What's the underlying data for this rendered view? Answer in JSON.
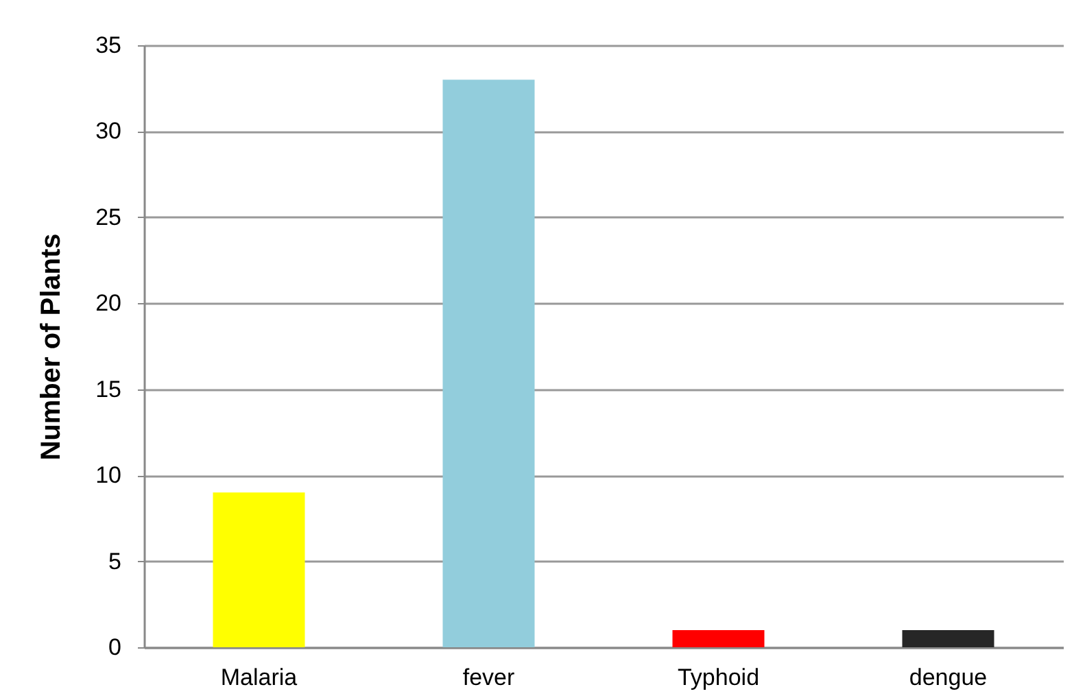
{
  "chart_data": {
    "type": "bar",
    "ylabel": "Number of Plants",
    "categories": [
      "Malaria",
      "fever",
      "Typhoid",
      "dengue"
    ],
    "values": [
      9,
      33,
      1,
      1
    ],
    "colors": [
      "#ffff00",
      "#92cddc",
      "#ff0000",
      "#262626"
    ],
    "ylim": [
      0,
      35
    ],
    "yticks": [
      0,
      5,
      10,
      15,
      20,
      25,
      30,
      35
    ],
    "grid": "y"
  }
}
